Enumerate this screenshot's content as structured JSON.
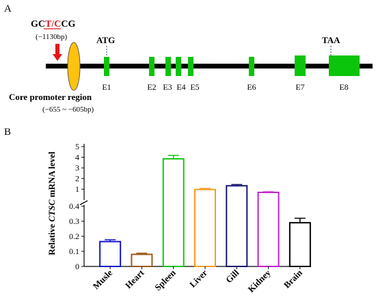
{
  "panelA": {
    "label": "A",
    "snp": {
      "prefix": "GC",
      "variant": "T/C",
      "suffix": "CG",
      "position": "(−1130bp)"
    },
    "promoter": {
      "title": "Core promoter region",
      "range": "(−655 ~ −605bp)"
    },
    "start_codon": "ATG",
    "stop_codon": "TAA",
    "exons": [
      "E1",
      "E2",
      "E3",
      "E4",
      "E5",
      "E6",
      "E7",
      "E8"
    ],
    "colors": {
      "exon": "#0cc40c",
      "promoter": "#ffc20e",
      "snp_arrow": "#e8141b",
      "variant": "#e8141b"
    }
  },
  "panelB": {
    "label": "B"
  },
  "chart_data": {
    "type": "bar",
    "categories": [
      "Musle",
      "Heart",
      "Spleen",
      "Liver",
      "Gill",
      "Kidney",
      "Brain"
    ],
    "values": [
      0.165,
      0.08,
      3.85,
      0.97,
      1.32,
      0.7,
      0.29
    ],
    "errors": [
      0.012,
      0.008,
      0.32,
      0.1,
      0.12,
      0.05,
      0.03
    ],
    "bar_colors": [
      "#1515d0",
      "#9c5a1c",
      "#16c416",
      "#f59a26",
      "#16166e",
      "#bf1fcf",
      "#000000"
    ],
    "ylabel_parts": [
      "Relative ",
      "CTSC",
      " mRNA level"
    ],
    "y_break": [
      0.5,
      0.55
    ],
    "yticks_lower": [
      "0",
      "0.1",
      "0.2",
      "0.3",
      "0.4"
    ],
    "yticks_upper": [
      "1",
      "2",
      "3",
      "4",
      "5"
    ],
    "ylim": [
      0,
      5
    ]
  }
}
